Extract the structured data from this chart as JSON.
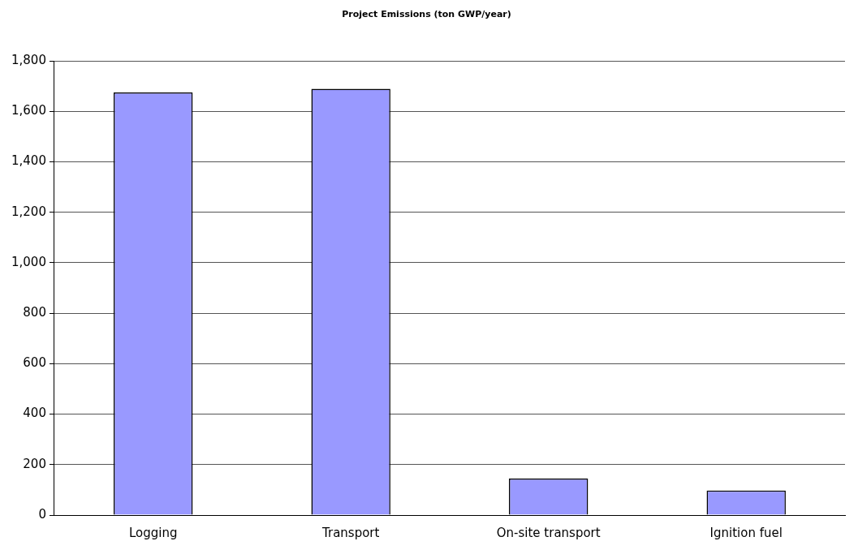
{
  "chart_data": {
    "type": "bar",
    "title": "Project Emissions (ton GWP/year)",
    "categories": [
      "Logging",
      "Transport",
      "On-site transport",
      "Ignition fuel"
    ],
    "values": [
      1675,
      1690,
      145,
      97
    ],
    "color": "#9999ff",
    "ylim": [
      0,
      1800
    ],
    "yticks": [
      {
        "value": 0,
        "label": "0"
      },
      {
        "value": 200,
        "label": "200"
      },
      {
        "value": 400,
        "label": "400"
      },
      {
        "value": 600,
        "label": "600"
      },
      {
        "value": 800,
        "label": "800"
      },
      {
        "value": 1000,
        "label": "1,000"
      },
      {
        "value": 1200,
        "label": "1,200"
      },
      {
        "value": 1400,
        "label": "1,400"
      },
      {
        "value": 1600,
        "label": "1,600"
      },
      {
        "value": 1800,
        "label": "1,800"
      }
    ],
    "grid": "y",
    "legend": false
  }
}
